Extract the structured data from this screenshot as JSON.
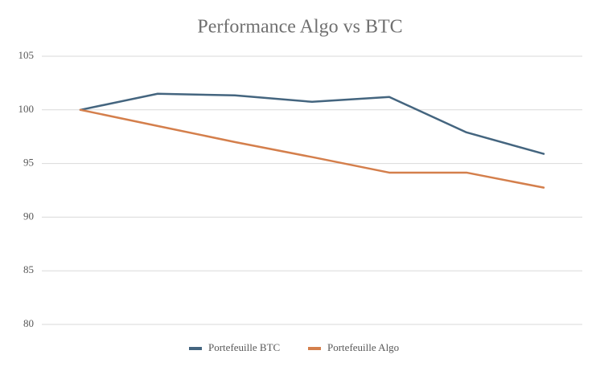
{
  "chart_data": {
    "type": "line",
    "title": "Performance Algo vs BTC",
    "series": [
      {
        "name": "Portefeuille BTC",
        "color": "#44657f",
        "values": [
          100,
          101.5,
          101.35,
          100.75,
          101.2,
          97.9,
          95.9
        ]
      },
      {
        "name": "Portefeuille Algo",
        "color": "#d47f4c",
        "values": [
          100,
          98.5,
          97.0,
          95.6,
          94.15,
          94.15,
          92.75
        ]
      }
    ],
    "ylim": [
      80,
      105
    ],
    "yticks": [
      80,
      85,
      90,
      95,
      100,
      105
    ],
    "grid": true,
    "legend": "bottom"
  }
}
